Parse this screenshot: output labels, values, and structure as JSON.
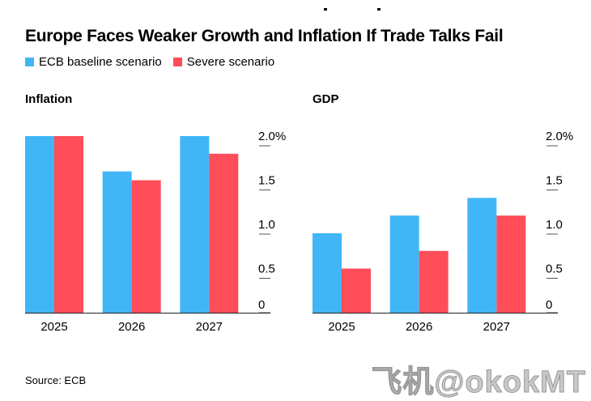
{
  "title": "Europe Faces Weaker Growth and Inflation If Trade Talks Fail",
  "legend": [
    {
      "label": "ECB baseline scenario",
      "color": "#41b6f6"
    },
    {
      "label": "Severe scenario",
      "color": "#ff4d5a"
    }
  ],
  "source": "Source: ECB",
  "watermark": "飞机@okokMT",
  "chart_data": [
    {
      "type": "bar",
      "title": "Inflation",
      "categories": [
        "2025",
        "2026",
        "2027"
      ],
      "series": [
        {
          "name": "ECB baseline scenario",
          "values": [
            2.0,
            1.6,
            2.0
          ]
        },
        {
          "name": "Severe scenario",
          "values": [
            2.0,
            1.5,
            1.8
          ]
        }
      ],
      "ylim": [
        0,
        2.0
      ],
      "yticks": [
        "2.0%",
        "1.5",
        "1.0",
        "0.5",
        "0"
      ],
      "ytick_values": [
        2.0,
        1.5,
        1.0,
        0.5,
        0
      ]
    },
    {
      "type": "bar",
      "title": "GDP",
      "categories": [
        "2025",
        "2026",
        "2027"
      ],
      "series": [
        {
          "name": "ECB baseline scenario",
          "values": [
            0.9,
            1.1,
            1.3
          ]
        },
        {
          "name": "Severe scenario",
          "values": [
            0.5,
            0.7,
            1.1
          ]
        }
      ],
      "ylim": [
        0,
        2.0
      ],
      "yticks": [
        "2.0%",
        "1.5",
        "1.0",
        "0.5",
        "0"
      ],
      "ytick_values": [
        2.0,
        1.5,
        1.0,
        0.5,
        0
      ]
    }
  ]
}
